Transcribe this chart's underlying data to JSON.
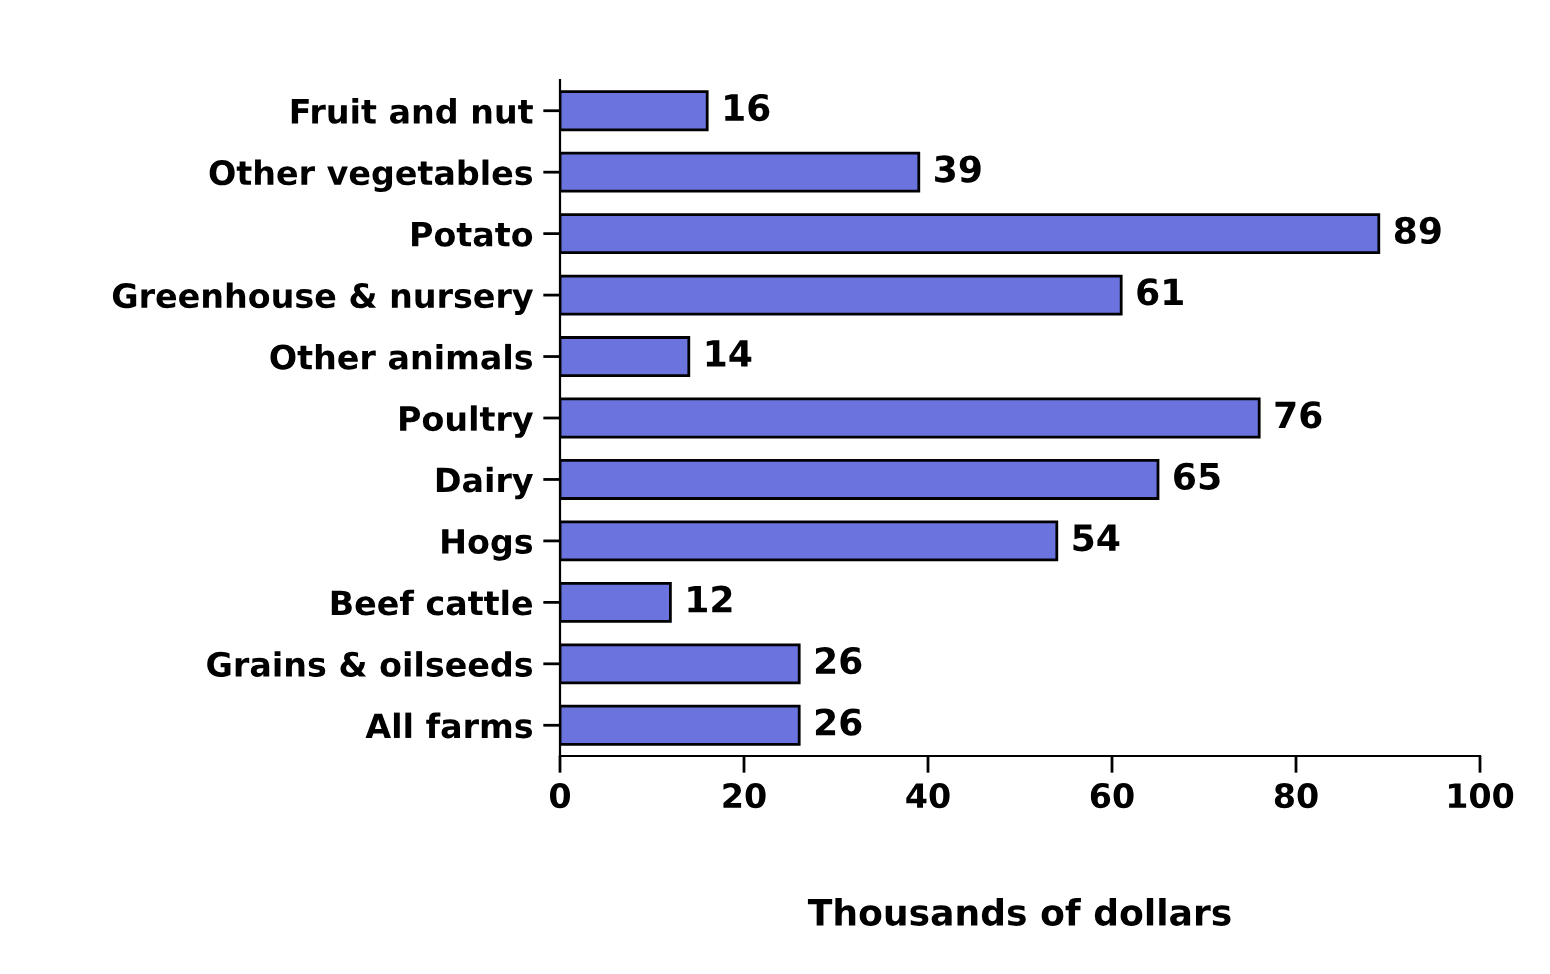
{
  "chart_data": {
    "type": "bar",
    "orientation": "horizontal",
    "xlabel": "Thousands of dollars",
    "categories": [
      "Fruit and nut",
      "Other vegetables",
      "Potato",
      "Greenhouse & nursery",
      "Other animals",
      "Poultry",
      "Dairy",
      "Hogs",
      "Beef cattle",
      "Grains & oilseeds",
      "All farms"
    ],
    "values": [
      16,
      39,
      89,
      61,
      14,
      76,
      65,
      54,
      12,
      26,
      26
    ],
    "color": "#6b74de",
    "xlim": [
      0,
      100
    ],
    "xticks": [
      0,
      20,
      40,
      60,
      80,
      100
    ],
    "data_labels": true,
    "grid": false,
    "legend": false
  }
}
